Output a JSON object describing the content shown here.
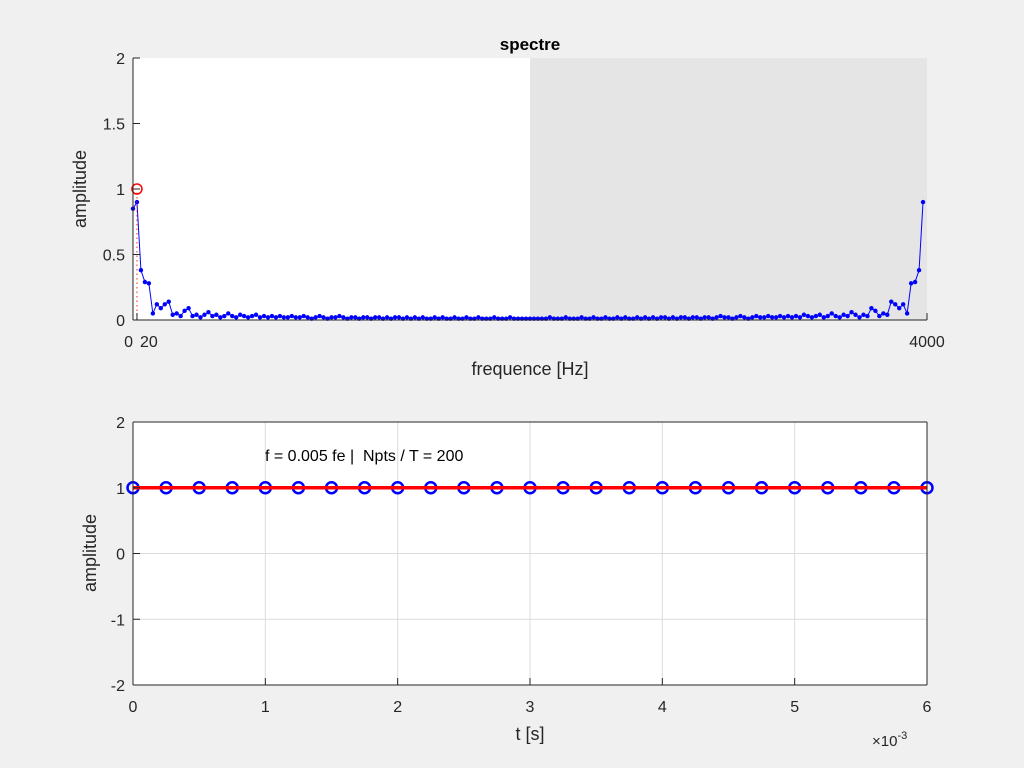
{
  "chart_data": [
    {
      "type": "line",
      "title": "spectre",
      "xlabel": "frequence [Hz]",
      "ylabel": "amplitude",
      "xlim": [
        0,
        4000
      ],
      "ylim": [
        0,
        2
      ],
      "xticks": [
        0,
        20,
        4000
      ],
      "xtick_labels": [
        "0",
        "20",
        "4000"
      ],
      "yticks": [
        0,
        0.5,
        1,
        1.5,
        2
      ],
      "ytick_labels": [
        "0",
        "0.5",
        "1",
        "1.5",
        "2"
      ],
      "grid": false,
      "shaded_region": {
        "x": [
          2000,
          4000
        ],
        "color": "#e5e5e5"
      },
      "series": [
        {
          "color": "#0000ff",
          "marker": "dot",
          "x_step": 20,
          "values": [
            0.85,
            0.9,
            0.38,
            0.29,
            0.28,
            0.05,
            0.12,
            0.09,
            0.12,
            0.14,
            0.04,
            0.05,
            0.03,
            0.07,
            0.09,
            0.03,
            0.04,
            0.02,
            0.04,
            0.06,
            0.03,
            0.04,
            0.02,
            0.03,
            0.05,
            0.03,
            0.02,
            0.04,
            0.03,
            0.02,
            0.03,
            0.04,
            0.02,
            0.03,
            0.02,
            0.03,
            0.02,
            0.03,
            0.02,
            0.02,
            0.03,
            0.02,
            0.02,
            0.03,
            0.02,
            0.01,
            0.02,
            0.03,
            0.02,
            0.01,
            0.02,
            0.02,
            0.03,
            0.02,
            0.01,
            0.02,
            0.02,
            0.01,
            0.02,
            0.02,
            0.01,
            0.02,
            0.02,
            0.01,
            0.02,
            0.01,
            0.02,
            0.02,
            0.01,
            0.02,
            0.01,
            0.02,
            0.01,
            0.02,
            0.01,
            0.01,
            0.02,
            0.01,
            0.02,
            0.01,
            0.01,
            0.02,
            0.01,
            0.01,
            0.02,
            0.01,
            0.01,
            0.02,
            0.01,
            0.01,
            0.01,
            0.02,
            0.01,
            0.01,
            0.01,
            0.02,
            0.01,
            0.01,
            0.01,
            0.01,
            0.01,
            0.01,
            0.01,
            0.01,
            0.01,
            0.02,
            0.01,
            0.01,
            0.01,
            0.02,
            0.01,
            0.01,
            0.01,
            0.02,
            0.01,
            0.01,
            0.02,
            0.01,
            0.01,
            0.02,
            0.01,
            0.01,
            0.02,
            0.01,
            0.02,
            0.01,
            0.01,
            0.02,
            0.01,
            0.02,
            0.01,
            0.02,
            0.01,
            0.02,
            0.02,
            0.01,
            0.02,
            0.01,
            0.02,
            0.02,
            0.01,
            0.02,
            0.02,
            0.01,
            0.02,
            0.02,
            0.01,
            0.02,
            0.03,
            0.02,
            0.02,
            0.01,
            0.02,
            0.03,
            0.02,
            0.01,
            0.02,
            0.03,
            0.02,
            0.02,
            0.03,
            0.02,
            0.02,
            0.03,
            0.02,
            0.03,
            0.02,
            0.03,
            0.02,
            0.04,
            0.03,
            0.02,
            0.03,
            0.04,
            0.02,
            0.03,
            0.05,
            0.03,
            0.02,
            0.04,
            0.03,
            0.06,
            0.04,
            0.02,
            0.04,
            0.03,
            0.09,
            0.07,
            0.03,
            0.05,
            0.04,
            0.14,
            0.12,
            0.09,
            0.12,
            0.05,
            0.28,
            0.29,
            0.38,
            0.9
          ]
        },
        {
          "color": "#ff0000",
          "marker": "circle",
          "style": "dotted-stem",
          "x": [
            20
          ],
          "y": [
            1
          ]
        }
      ]
    },
    {
      "type": "line",
      "title": "",
      "xlabel": "t [s]",
      "ylabel": "amplitude",
      "xlim": [
        0,
        0.006
      ],
      "ylim": [
        -2,
        2
      ],
      "xticks": [
        0,
        0.001,
        0.002,
        0.003,
        0.004,
        0.005,
        0.006
      ],
      "xtick_labels": [
        "0",
        "1",
        "2",
        "3",
        "4",
        "5",
        "6"
      ],
      "x_exponent_label": "×10",
      "x_exponent": "-3",
      "yticks": [
        -2,
        -1,
        0,
        1,
        2
      ],
      "ytick_labels": [
        "-2",
        "-1",
        "0",
        "1",
        "2"
      ],
      "grid": true,
      "annotation": "f = 0.005 fe |  Npts / T = 200",
      "series": [
        {
          "color": "#0000ff",
          "marker": "circle",
          "x_step": 0.00025,
          "values": [
            1,
            1,
            1,
            1,
            1,
            1,
            1,
            1,
            1,
            1,
            1,
            1,
            1,
            1,
            1,
            1,
            1,
            1,
            1,
            1,
            1,
            1,
            1,
            1,
            1
          ]
        },
        {
          "color": "#ff0000",
          "marker": "none",
          "x": [
            0,
            0.006
          ],
          "y": [
            1,
            1
          ]
        }
      ]
    }
  ]
}
